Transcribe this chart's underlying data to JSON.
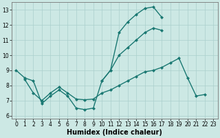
{
  "xlabel": "Humidex (Indice chaleur)",
  "bg_color": "#cce8e4",
  "grid_color": "#aacfcc",
  "line_color": "#1a7872",
  "xlim": [
    -0.5,
    23.5
  ],
  "ylim": [
    5.8,
    13.5
  ],
  "xticks": [
    0,
    1,
    2,
    3,
    4,
    5,
    6,
    7,
    8,
    9,
    10,
    11,
    12,
    13,
    14,
    15,
    16,
    17,
    18,
    19,
    20,
    21,
    22,
    23
  ],
  "yticks": [
    6,
    7,
    8,
    9,
    10,
    11,
    12,
    13
  ],
  "line1": {
    "x": [
      0,
      1,
      2,
      3,
      4,
      5,
      6,
      7,
      8,
      9,
      10,
      11,
      12,
      13,
      14,
      15,
      16,
      17
    ],
    "y": [
      9.0,
      8.5,
      8.3,
      6.8,
      7.3,
      7.7,
      7.3,
      6.5,
      6.4,
      6.5,
      8.3,
      9.0,
      11.5,
      12.2,
      12.7,
      13.1,
      13.2,
      12.5
    ]
  },
  "line2": {
    "x": [
      1,
      2,
      3,
      4,
      5,
      6,
      7,
      8,
      9,
      10,
      11,
      12,
      13,
      14,
      15,
      16,
      17,
      18,
      19,
      20,
      21,
      22
    ],
    "y": [
      8.4,
      7.5,
      7.0,
      7.5,
      7.9,
      7.5,
      7.1,
      7.05,
      7.1,
      7.5,
      7.7,
      8.0,
      8.3,
      8.6,
      8.9,
      9.0,
      9.2,
      9.5,
      9.8,
      8.5,
      7.3,
      7.4
    ]
  },
  "line3": {
    "x": [
      10,
      11,
      12,
      13,
      14,
      15,
      16,
      17
    ],
    "y": [
      8.3,
      9.0,
      10.0,
      10.5,
      11.0,
      11.5,
      11.8,
      11.65
    ]
  },
  "marker_size": 2.5,
  "line_width": 1.0,
  "tick_fontsize": 5.5,
  "label_fontsize": 7.0
}
